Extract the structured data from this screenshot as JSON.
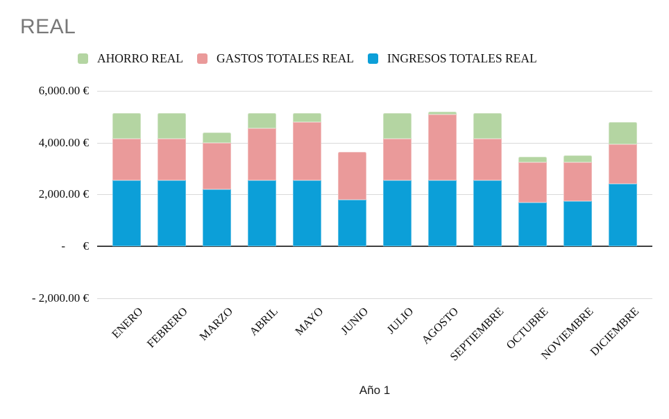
{
  "title": "REAL",
  "x_axis_title": "Año 1",
  "colors": {
    "ahorro": "#b4d5a2",
    "gastos": "#ea9a9a",
    "ingresos": "#0c9fd8",
    "gridline": "#d9d9d9",
    "zero_axis": "#3f3f3f",
    "title_text": "#787878"
  },
  "legend": [
    {
      "label": "AHORRO REAL",
      "color": "#b4d5a2"
    },
    {
      "label": "GASTOS TOTALES REAL",
      "color": "#ea9a9a"
    },
    {
      "label": "INGRESOS TOTALES REAL",
      "color": "#0c9fd8"
    }
  ],
  "chart_data": {
    "type": "bar",
    "stacked": true,
    "title": "REAL",
    "xlabel": "Año 1",
    "ylabel": "",
    "grid": true,
    "legend_position": "top",
    "ylim": [
      -2000,
      6000
    ],
    "categories": [
      "ENERO",
      "FEBRERO",
      "MARZO",
      "ABRIL",
      "MAYO",
      "JUNIO",
      "JULIO",
      "AGOSTO",
      "SEPTIEMBRE",
      "OCTUBRE",
      "NOVIEMBRE",
      "DICIEMBRE"
    ],
    "series": [
      {
        "name": "INGRESOS TOTALES REAL",
        "color": "#0c9fd8",
        "values": [
          2550,
          2550,
          2200,
          2550,
          2550,
          1800,
          2550,
          2550,
          2550,
          1700,
          1750,
          2400
        ]
      },
      {
        "name": "GASTOS TOTALES REAL",
        "color": "#ea9a9a",
        "values": [
          1600,
          1600,
          1800,
          2000,
          2250,
          1850,
          1600,
          2550,
          1600,
          1550,
          1500,
          1550
        ]
      },
      {
        "name": "AHORRO REAL",
        "color": "#b4d5a2",
        "values": [
          1000,
          1000,
          400,
          600,
          350,
          0,
          1000,
          100,
          1000,
          200,
          250,
          850
        ]
      }
    ],
    "y_ticks": [
      {
        "label": "6,000.00 €",
        "value": 6000
      },
      {
        "label": "4,000.00 €",
        "value": 4000
      },
      {
        "label": "2,000.00 €",
        "value": 2000
      },
      {
        "label": "-      €",
        "value": 0
      },
      {
        "label": "- 2,000.00 €",
        "value": -2000
      }
    ]
  }
}
